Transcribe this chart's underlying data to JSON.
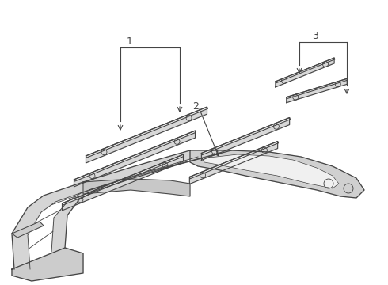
{
  "background_color": "#ffffff",
  "line_color": "#444444",
  "label_color": "#111111",
  "fig_width": 4.9,
  "fig_height": 3.6,
  "dpi": 100
}
